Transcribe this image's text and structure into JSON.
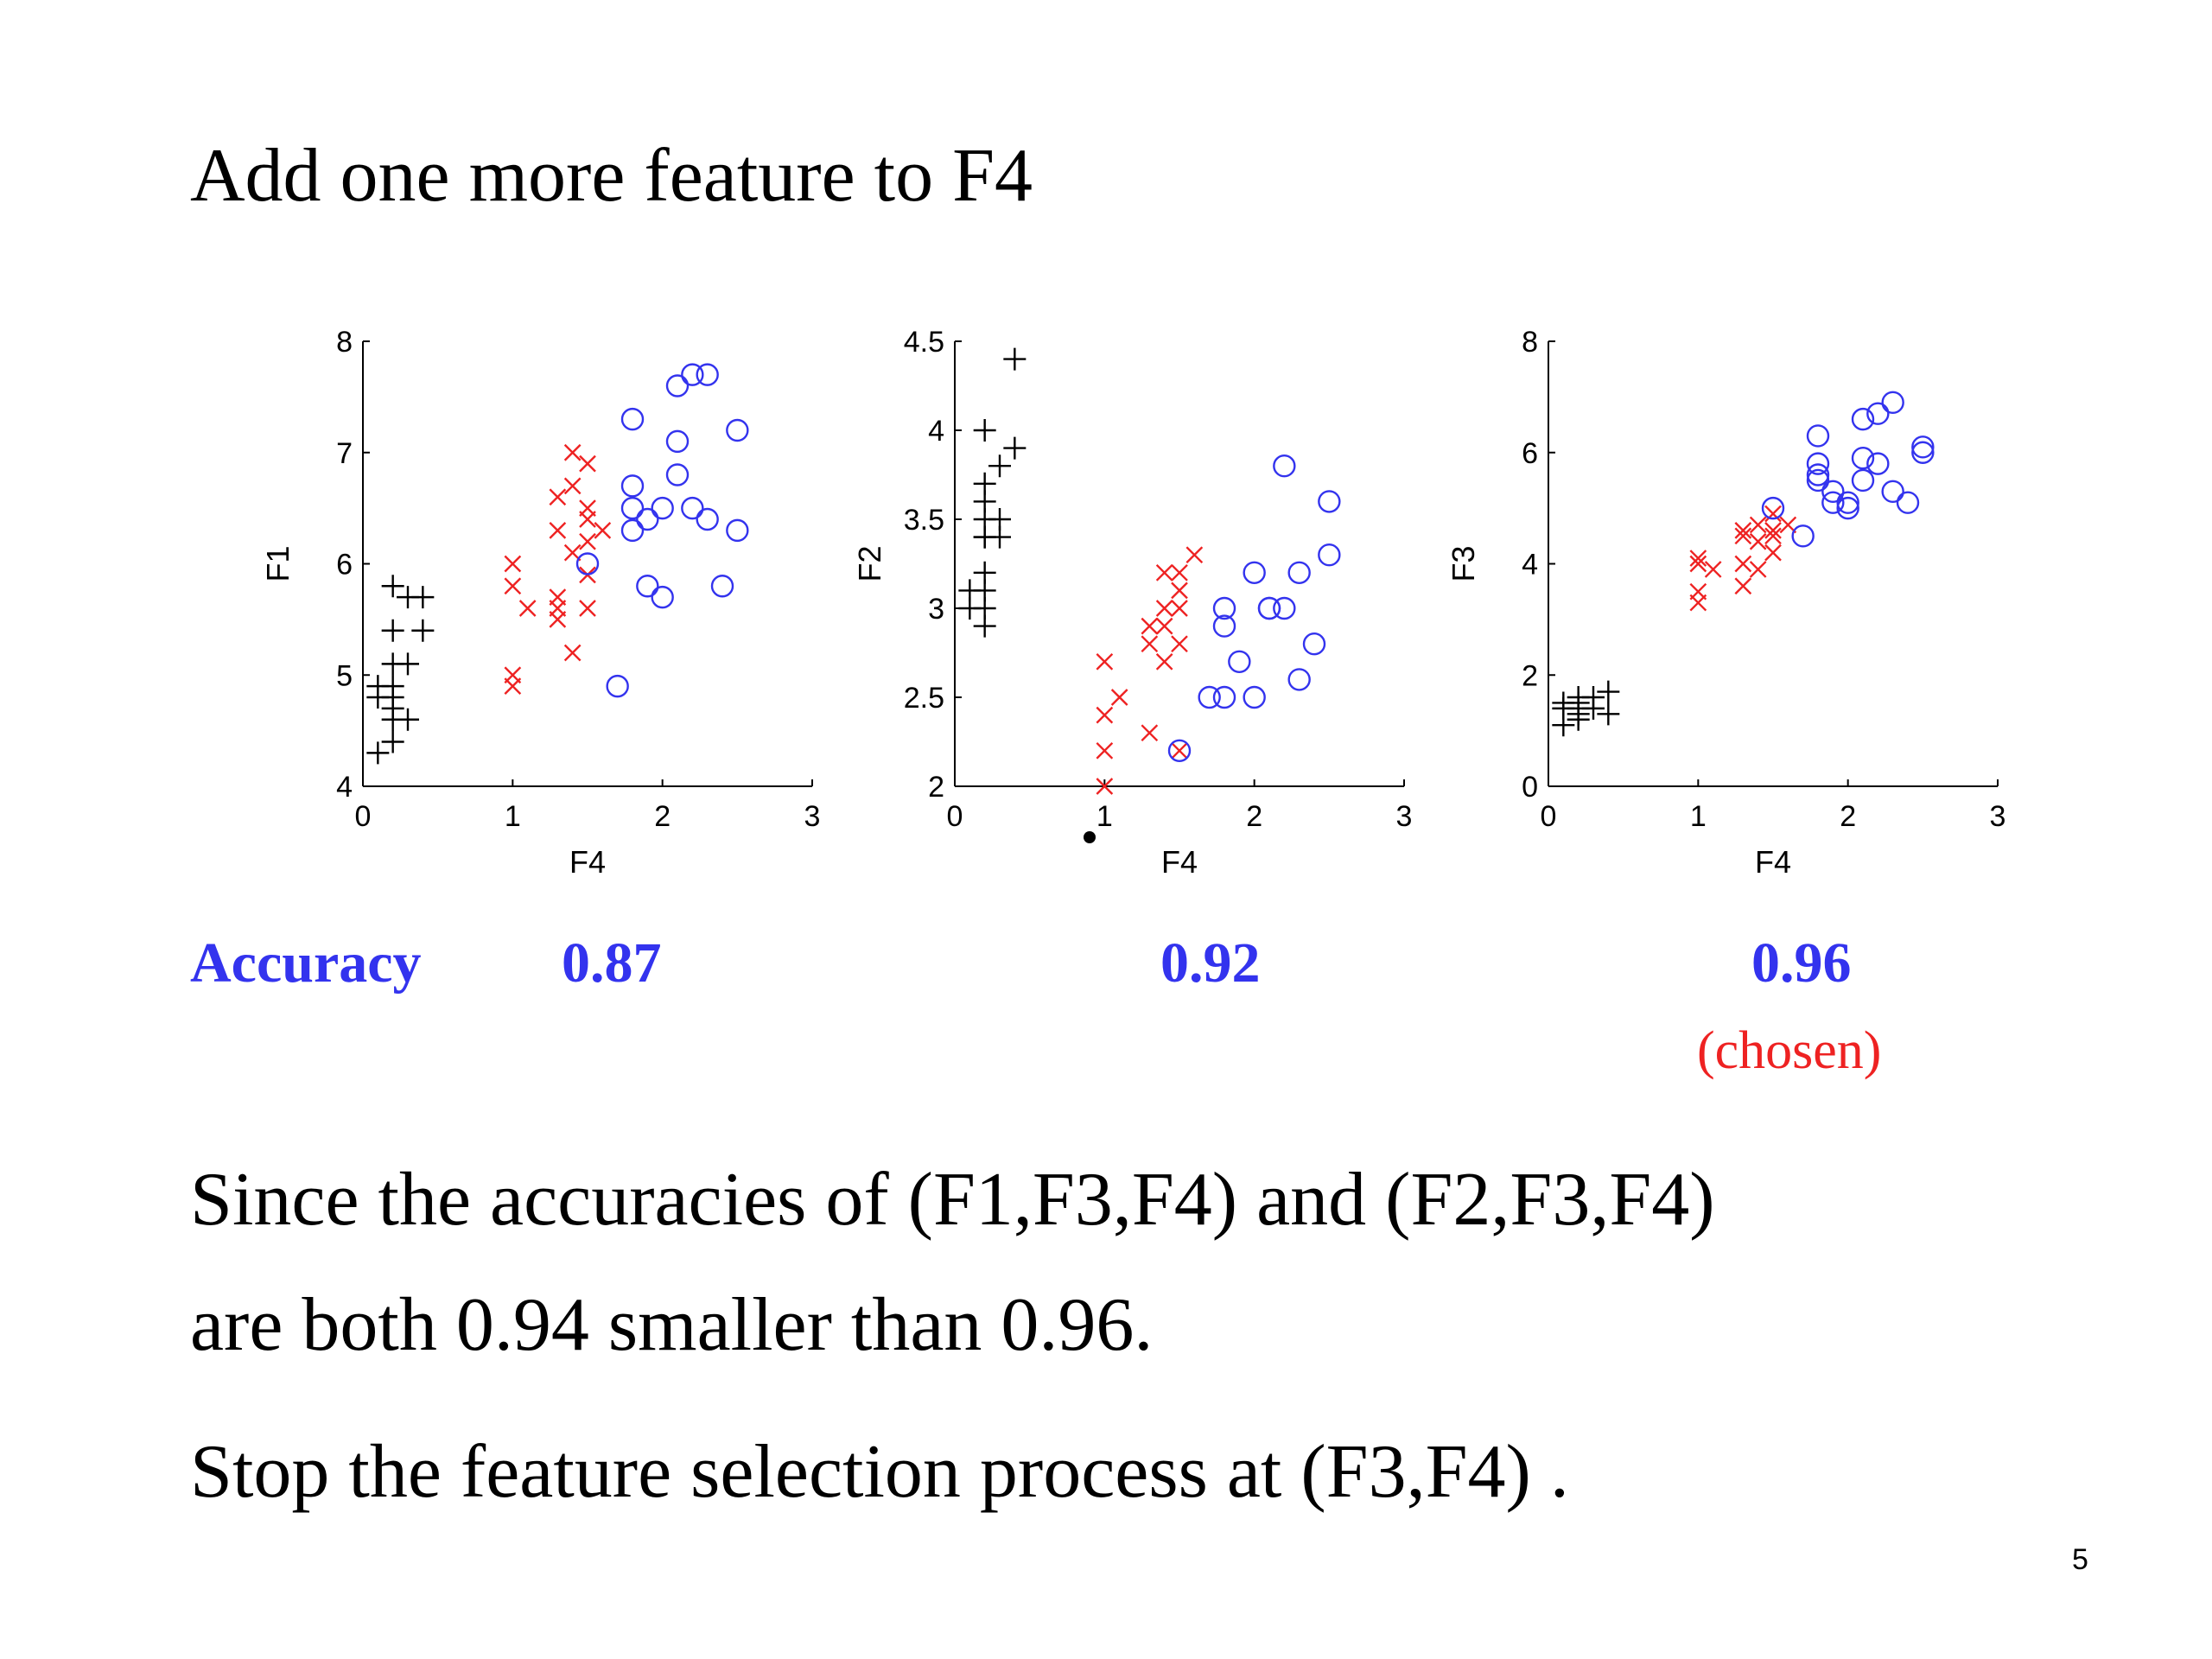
{
  "slide": {
    "title": "Add one more feature to F4",
    "accuracy_label": "Accuracy",
    "accuracies": [
      "0.87",
      "0.92",
      "0.96"
    ],
    "chosen_label": "(chosen)",
    "body_lines": [
      "Since the accuracies of (F1,F3,F4) and  (F2,F3,F4)",
      "are both 0.94 smaller than 0.96.",
      "Stop the feature selection process at (F3,F4) ."
    ],
    "page_number": "5"
  },
  "colors": {
    "plus": "#000000",
    "cross": "#ee2222",
    "circle": "#3333ee",
    "accuracy": "#3333ee",
    "chosen": "#ee2222"
  },
  "chart_data": [
    {
      "type": "scatter",
      "xlabel": "F4",
      "ylabel": "F1",
      "xlim": [
        0,
        3
      ],
      "ylim": [
        4,
        8
      ],
      "xticks": [
        "0",
        "1",
        "2",
        "3"
      ],
      "yticks": [
        "4",
        "5",
        "6",
        "7",
        "8"
      ],
      "series": [
        {
          "marker": "plus",
          "points": [
            [
              0.2,
              5.8
            ],
            [
              0.3,
              5.7
            ],
            [
              0.4,
              5.7
            ],
            [
              0.2,
              5.4
            ],
            [
              0.4,
              5.4
            ],
            [
              0.2,
              5.1
            ],
            [
              0.3,
              5.1
            ],
            [
              0.1,
              4.9
            ],
            [
              0.2,
              4.9
            ],
            [
              0.1,
              4.8
            ],
            [
              0.2,
              4.8
            ],
            [
              0.2,
              4.7
            ],
            [
              0.2,
              4.6
            ],
            [
              0.3,
              4.6
            ],
            [
              0.2,
              4.4
            ],
            [
              0.1,
              4.3
            ]
          ]
        },
        {
          "marker": "cross",
          "points": [
            [
              1.4,
              7.0
            ],
            [
              1.5,
              6.9
            ],
            [
              1.4,
              6.7
            ],
            [
              1.3,
              6.6
            ],
            [
              1.5,
              6.5
            ],
            [
              1.5,
              6.4
            ],
            [
              1.6,
              6.3
            ],
            [
              1.3,
              6.3
            ],
            [
              1.5,
              6.2
            ],
            [
              1.4,
              6.1
            ],
            [
              1.0,
              6.0
            ],
            [
              1.5,
              5.9
            ],
            [
              1.0,
              5.8
            ],
            [
              1.3,
              5.7
            ],
            [
              1.1,
              5.6
            ],
            [
              1.3,
              5.6
            ],
            [
              1.5,
              5.6
            ],
            [
              1.3,
              5.5
            ],
            [
              1.4,
              5.2
            ],
            [
              1.0,
              5.0
            ],
            [
              1.0,
              4.9
            ]
          ]
        },
        {
          "marker": "circle",
          "points": [
            [
              2.3,
              7.7
            ],
            [
              2.2,
              7.7
            ],
            [
              2.1,
              7.6
            ],
            [
              1.8,
              7.3
            ],
            [
              2.5,
              7.2
            ],
            [
              2.1,
              7.1
            ],
            [
              2.1,
              6.8
            ],
            [
              1.8,
              6.7
            ],
            [
              1.8,
              6.5
            ],
            [
              2.0,
              6.5
            ],
            [
              2.2,
              6.5
            ],
            [
              1.9,
              6.4
            ],
            [
              2.3,
              6.4
            ],
            [
              2.5,
              6.3
            ],
            [
              1.8,
              6.3
            ],
            [
              1.5,
              6.0
            ],
            [
              1.9,
              5.8
            ],
            [
              2.4,
              5.8
            ],
            [
              2.0,
              5.7
            ],
            [
              1.7,
              4.9
            ]
          ]
        }
      ]
    },
    {
      "type": "scatter",
      "xlabel": "F4",
      "ylabel": "F2",
      "xlim": [
        0,
        3
      ],
      "ylim": [
        2,
        4.5
      ],
      "xticks": [
        "0",
        "1",
        "2",
        "3"
      ],
      "yticks": [
        "2",
        "2.5",
        "3",
        "3.5",
        "4",
        "4.5"
      ],
      "series": [
        {
          "marker": "plus",
          "points": [
            [
              0.4,
              4.4
            ],
            [
              0.2,
              4.0
            ],
            [
              0.4,
              3.9
            ],
            [
              0.3,
              3.8
            ],
            [
              0.2,
              3.7
            ],
            [
              0.2,
              3.6
            ],
            [
              0.3,
              3.5
            ],
            [
              0.2,
              3.5
            ],
            [
              0.2,
              3.4
            ],
            [
              0.3,
              3.4
            ],
            [
              0.2,
              3.4
            ],
            [
              0.2,
              3.2
            ],
            [
              0.1,
              3.1
            ],
            [
              0.2,
              3.1
            ],
            [
              0.1,
              3.0
            ],
            [
              0.2,
              3.0
            ],
            [
              0.2,
              2.9
            ]
          ]
        },
        {
          "marker": "cross",
          "points": [
            [
              1.6,
              3.3
            ],
            [
              1.4,
              3.2
            ],
            [
              1.5,
              3.2
            ],
            [
              1.5,
              3.1
            ],
            [
              1.4,
              3.0
            ],
            [
              1.5,
              3.0
            ],
            [
              1.3,
              2.9
            ],
            [
              1.4,
              2.9
            ],
            [
              1.3,
              2.8
            ],
            [
              1.5,
              2.8
            ],
            [
              1.4,
              2.7
            ],
            [
              1.0,
              2.7
            ],
            [
              1.1,
              2.5
            ],
            [
              1.0,
              2.4
            ],
            [
              1.3,
              2.3
            ],
            [
              1.0,
              2.2
            ],
            [
              1.5,
              2.2
            ],
            [
              1.0,
              2.0
            ]
          ]
        },
        {
          "marker": "circle",
          "points": [
            [
              2.2,
              3.8
            ],
            [
              2.5,
              3.6
            ],
            [
              2.5,
              3.3
            ],
            [
              2.0,
              3.2
            ],
            [
              2.3,
              3.2
            ],
            [
              1.8,
              3.0
            ],
            [
              2.1,
              3.0
            ],
            [
              2.2,
              3.0
            ],
            [
              2.1,
              3.0
            ],
            [
              1.8,
              2.9
            ],
            [
              2.4,
              2.8
            ],
            [
              1.9,
              2.7
            ],
            [
              2.3,
              2.6
            ],
            [
              1.7,
              2.5
            ],
            [
              1.8,
              2.5
            ],
            [
              2.0,
              2.5
            ],
            [
              1.5,
              2.2
            ]
          ]
        }
      ]
    },
    {
      "type": "scatter",
      "xlabel": "F4",
      "ylabel": "F3",
      "xlim": [
        0,
        3
      ],
      "ylim": [
        0,
        8
      ],
      "xticks": [
        "0",
        "1",
        "2",
        "3"
      ],
      "yticks": [
        "0",
        "2",
        "4",
        "6",
        "8"
      ],
      "series": [
        {
          "marker": "plus",
          "points": [
            [
              0.1,
              1.5
            ],
            [
              0.2,
              1.4
            ],
            [
              0.3,
              1.6
            ],
            [
              0.2,
              1.5
            ],
            [
              0.4,
              1.7
            ],
            [
              0.2,
              1.3
            ],
            [
              0.1,
              1.1
            ],
            [
              0.3,
              1.4
            ],
            [
              0.4,
              1.3
            ],
            [
              0.2,
              1.6
            ],
            [
              0.1,
              1.4
            ],
            [
              0.2,
              1.2
            ]
          ]
        },
        {
          "marker": "cross",
          "points": [
            [
              1.0,
              4.1
            ],
            [
              1.0,
              4.0
            ],
            [
              1.1,
              3.9
            ],
            [
              1.0,
              3.5
            ],
            [
              1.0,
              3.3
            ],
            [
              1.3,
              4.6
            ],
            [
              1.4,
              4.7
            ],
            [
              1.3,
              4.5
            ],
            [
              1.5,
              4.5
            ],
            [
              1.4,
              4.4
            ],
            [
              1.5,
              4.6
            ],
            [
              1.6,
              4.7
            ],
            [
              1.5,
              4.9
            ],
            [
              1.3,
              4.0
            ],
            [
              1.4,
              3.9
            ],
            [
              1.3,
              3.6
            ],
            [
              1.5,
              4.2
            ]
          ]
        },
        {
          "marker": "circle",
          "points": [
            [
              2.3,
              6.9
            ],
            [
              2.2,
              6.7
            ],
            [
              2.1,
              6.6
            ],
            [
              1.8,
              6.3
            ],
            [
              2.5,
              6.1
            ],
            [
              2.5,
              6.0
            ],
            [
              2.1,
              5.9
            ],
            [
              1.8,
              5.8
            ],
            [
              2.2,
              5.8
            ],
            [
              1.8,
              5.6
            ],
            [
              1.8,
              5.5
            ],
            [
              2.1,
              5.5
            ],
            [
              2.3,
              5.3
            ],
            [
              1.9,
              5.3
            ],
            [
              2.4,
              5.1
            ],
            [
              1.9,
              5.1
            ],
            [
              2.0,
              5.1
            ],
            [
              2.0,
              5.0
            ],
            [
              1.5,
              5.0
            ],
            [
              1.7,
              4.5
            ]
          ]
        }
      ]
    }
  ]
}
